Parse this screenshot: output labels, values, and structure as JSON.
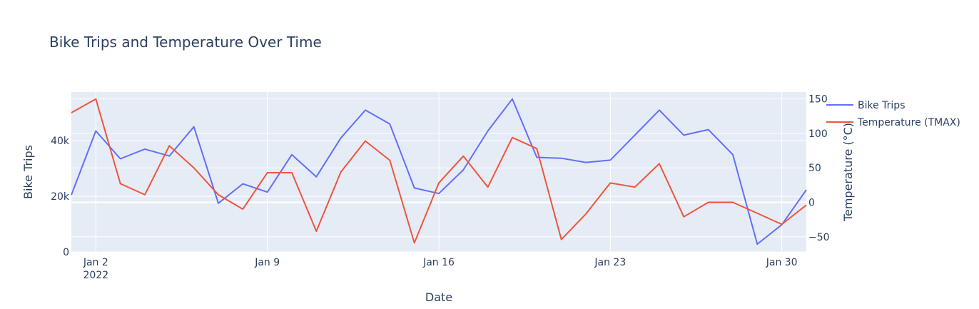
{
  "chart_data": {
    "type": "line",
    "title": "Bike Trips and Temperature Over Time",
    "xlabel": "Date",
    "ylabel": "Bike Trips",
    "y2label": "Temperature (°C)",
    "x": [
      "2022-01-01",
      "2022-01-02",
      "2022-01-03",
      "2022-01-04",
      "2022-01-05",
      "2022-01-06",
      "2022-01-07",
      "2022-01-08",
      "2022-01-09",
      "2022-01-10",
      "2022-01-11",
      "2022-01-12",
      "2022-01-13",
      "2022-01-14",
      "2022-01-15",
      "2022-01-16",
      "2022-01-17",
      "2022-01-18",
      "2022-01-19",
      "2022-01-20",
      "2022-01-21",
      "2022-01-22",
      "2022-01-23",
      "2022-01-24",
      "2022-01-25",
      "2022-01-26",
      "2022-01-27",
      "2022-01-28",
      "2022-01-29",
      "2022-01-30",
      "2022-01-31"
    ],
    "x_tick_labels": [
      {
        "date": "2022-01-02",
        "label": "Jan 2",
        "sublabel": "2022"
      },
      {
        "date": "2022-01-09",
        "label": "Jan 9",
        "sublabel": ""
      },
      {
        "date": "2022-01-16",
        "label": "Jan 16",
        "sublabel": ""
      },
      {
        "date": "2022-01-23",
        "label": "Jan 23",
        "sublabel": ""
      },
      {
        "date": "2022-01-30",
        "label": "Jan 30",
        "sublabel": ""
      }
    ],
    "ylim": [
      0,
      57500
    ],
    "y_ticks": [
      {
        "value": 0,
        "label": "0"
      },
      {
        "value": 20000,
        "label": "20k"
      },
      {
        "value": 40000,
        "label": "40k"
      }
    ],
    "y2lim": [
      -72,
      160
    ],
    "y2_ticks": [
      {
        "value": -50,
        "label": "−50"
      },
      {
        "value": 0,
        "label": "0"
      },
      {
        "value": 50,
        "label": "50"
      },
      {
        "value": 100,
        "label": "100"
      },
      {
        "value": 150,
        "label": "150"
      }
    ],
    "grid": true,
    "legend_position": "top-right",
    "series": [
      {
        "name": "Bike Trips",
        "axis": "y",
        "color": "#636efa",
        "values": [
          20500,
          43500,
          33500,
          37000,
          34500,
          45000,
          17500,
          24500,
          21500,
          35000,
          27000,
          41000,
          51000,
          46000,
          23000,
          21000,
          29500,
          43500,
          55000,
          34000,
          33700,
          32200,
          33000,
          42000,
          51000,
          42000,
          44000,
          35000,
          2800,
          9800,
          22300
        ]
      },
      {
        "name": "Temperature (TMAX)",
        "axis": "y2",
        "color": "#ef553b",
        "values": [
          130,
          150,
          27,
          11,
          82,
          50,
          11,
          -10,
          43,
          43,
          -42,
          44,
          89,
          61,
          -59,
          28,
          67,
          22,
          94,
          78,
          -54,
          -17,
          28,
          22,
          56,
          -21,
          0,
          0,
          -16,
          -32,
          -4
        ]
      }
    ]
  }
}
